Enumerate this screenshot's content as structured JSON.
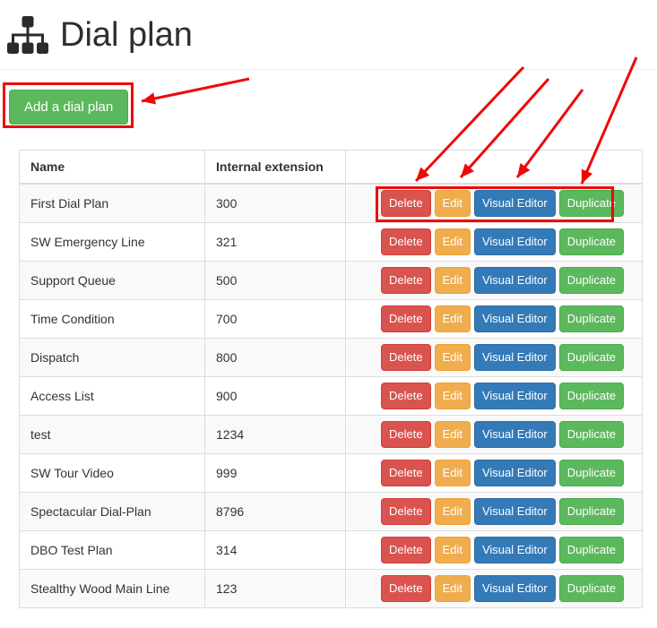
{
  "page": {
    "title": "Dial plan",
    "icon": "sitemap-icon"
  },
  "toolbar": {
    "add_button": {
      "label": "Add a dial plan",
      "color": "#5cb85c",
      "border_color": "#4cae4c"
    }
  },
  "table": {
    "columns": [
      "Name",
      "Internal extension",
      ""
    ],
    "rows": [
      {
        "name": "First Dial Plan",
        "extension": "300"
      },
      {
        "name": "SW Emergency Line",
        "extension": "321"
      },
      {
        "name": "Support Queue",
        "extension": "500"
      },
      {
        "name": "Time Condition",
        "extension": "700"
      },
      {
        "name": "Dispatch",
        "extension": "800"
      },
      {
        "name": "Access List",
        "extension": "900"
      },
      {
        "name": "test",
        "extension": "1234"
      },
      {
        "name": "SW Tour Video",
        "extension": "999"
      },
      {
        "name": "Spectacular Dial-Plan",
        "extension": "8796"
      },
      {
        "name": "DBO Test Plan",
        "extension": "314"
      },
      {
        "name": "Stealthy Wood Main Line",
        "extension": "123"
      }
    ],
    "actions": [
      {
        "name": "delete",
        "label": "Delete",
        "color": "#d9534f",
        "border_color": "#d43f3a"
      },
      {
        "name": "edit",
        "label": "Edit",
        "color": "#f0ad4e",
        "border_color": "#eea236"
      },
      {
        "name": "visual-editor",
        "label": "Visual Editor",
        "color": "#337ab7",
        "border_color": "#2e6da4"
      },
      {
        "name": "duplicate",
        "label": "Duplicate",
        "color": "#5cb85c",
        "border_color": "#4cae4c"
      }
    ]
  },
  "annotations": {
    "color": "#ee0808"
  }
}
